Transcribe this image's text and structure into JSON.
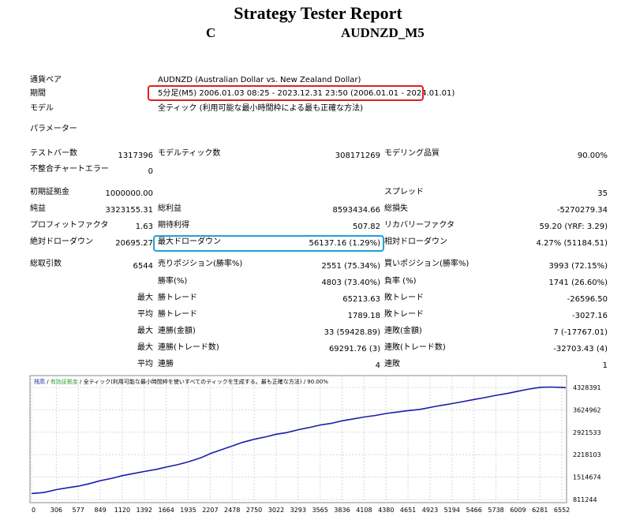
{
  "header": {
    "title": "Strategy Tester Report",
    "sub_left": "C",
    "sub_right": "AUDNZD_M5"
  },
  "info": {
    "symbol_label": "通貨ペア",
    "symbol_value": "AUDNZD (Australian Dollar vs. New Zealand Dollar)",
    "period_label": "期間",
    "period_value": "5分足(M5) 2006.01.03 08:25 - 2023.12.31 23:50 (2006.01.01 - 2024.01.01)",
    "model_label": "モデル",
    "model_value": "全ティック (利用可能な最小時間枠による最も正確な方法)",
    "params_label": "パラメーター"
  },
  "stats": {
    "bars_label": "テストバー数",
    "bars_value": "1317396",
    "ticks_label": "モデルティック数",
    "ticks_value": "308171269",
    "quality_label": "モデリング品質",
    "quality_value": "90.00%",
    "mismatch_label": "不整合チャートエラー",
    "mismatch_value": "0",
    "deposit_label": "初期証拠金",
    "deposit_value": "1000000.00",
    "spread_label": "スプレッド",
    "spread_value": "35",
    "net_label": "純益",
    "net_value": "3323155.31",
    "gross_profit_label": "総利益",
    "gross_profit_value": "8593434.66",
    "gross_loss_label": "総損失",
    "gross_loss_value": "-5270279.34",
    "pf_label": "プロフィットファクタ",
    "pf_value": "1.63",
    "expected_label": "期待利得",
    "expected_value": "507.82",
    "recovery_label": "リカバリーファクタ",
    "recovery_value": "59.20 (YRF: 3.29)",
    "abs_dd_label": "絶対ドローダウン",
    "abs_dd_value": "20695.27",
    "max_dd_label": "最大ドローダウン",
    "max_dd_value": "56137.16 (1.29%)",
    "rel_dd_label": "相対ドローダウン",
    "rel_dd_value": "4.27% (51184.51)",
    "trades_label": "総取引数",
    "trades_value": "6544",
    "short_label": "売りポジション(勝率%)",
    "short_value": "2551 (75.34%)",
    "long_label": "買いポジション(勝率%)",
    "long_value": "3993 (72.15%)",
    "win_label": "勝率(%)",
    "win_value": "4803 (73.40%)",
    "lose_label": "負率 (%)",
    "lose_value": "1741 (26.60%)",
    "max_word": "最大",
    "avg_word": "平均",
    "max_win_label": "勝トレード",
    "max_win_value": "65213.63",
    "max_loss_label": "敗トレード",
    "max_loss_value": "-26596.50",
    "avg_win_label": "勝トレード",
    "avg_win_value": "1789.18",
    "avg_loss_label": "敗トレード",
    "avg_loss_value": "-3027.16",
    "cons_win_amt_label": "連勝(金額)",
    "cons_win_amt_value": "33 (59428.89)",
    "cons_loss_amt_label": "連敗(金額)",
    "cons_loss_amt_value": "7 (-17767.01)",
    "cons_win_tr_label": "連勝(トレード数)",
    "cons_win_tr_value": "69291.76 (3)",
    "cons_loss_tr_label": "連敗(トレード数)",
    "cons_loss_tr_value": "-32703.43 (4)",
    "avg_cons_win_label": "連勝",
    "avg_cons_win_value": "4",
    "avg_cons_loss_label": "連敗",
    "avg_cons_loss_value": "1"
  },
  "chart_legend": {
    "balance": "残高",
    "sep1": " / ",
    "equity": "有効証拠金",
    "sep2": " / ",
    "rest": "全ティック(利用可能な最小時間枠を使いすべてのティックを生成する。最も正確な方法) / 90.00%"
  },
  "colors": {
    "balance": "#1c1ca8",
    "legend_balance": "#1c1ca8",
    "legend_equity": "#2ca02c"
  },
  "chart_data": {
    "type": "line",
    "x_ticks": [
      "0",
      "306",
      "577",
      "849",
      "1120",
      "1392",
      "1664",
      "1935",
      "2207",
      "2478",
      "2750",
      "3022",
      "3293",
      "3565",
      "3836",
      "4108",
      "4380",
      "4651",
      "4923",
      "5194",
      "5466",
      "5738",
      "6009",
      "6281",
      "6552"
    ],
    "y_ticks": [
      "4328391",
      "3624962",
      "2921533",
      "2218103",
      "1514674",
      "811244"
    ],
    "xlim": [
      0,
      6600
    ],
    "ylim": [
      811244,
      4328391
    ],
    "grid": true,
    "series": [
      {
        "x": [
          0,
          150,
          306,
          450,
          577,
          700,
          849,
          1000,
          1120,
          1250,
          1392,
          1550,
          1664,
          1800,
          1935,
          2100,
          2207,
          2350,
          2478,
          2600,
          2750,
          2900,
          3022,
          3150,
          3293,
          3450,
          3565,
          3700,
          3836,
          3950,
          4108,
          4250,
          4380,
          4500,
          4651,
          4800,
          4923,
          5050,
          5194,
          5300,
          5466,
          5600,
          5738,
          5900,
          6009,
          6150,
          6281,
          6400,
          6552,
          6600
        ],
        "y": [
          1000000,
          1030000,
          1120000,
          1180000,
          1230000,
          1300000,
          1400000,
          1480000,
          1560000,
          1620000,
          1690000,
          1760000,
          1830000,
          1900000,
          1990000,
          2130000,
          2250000,
          2380000,
          2490000,
          2600000,
          2700000,
          2780000,
          2860000,
          2910000,
          3000000,
          3080000,
          3150000,
          3200000,
          3280000,
          3330000,
          3400000,
          3450000,
          3510000,
          3550000,
          3600000,
          3640000,
          3700000,
          3760000,
          3820000,
          3870000,
          3950000,
          4010000,
          4080000,
          4150000,
          4210000,
          4280000,
          4330000,
          4340000,
          4330000,
          4320000
        ]
      }
    ]
  }
}
